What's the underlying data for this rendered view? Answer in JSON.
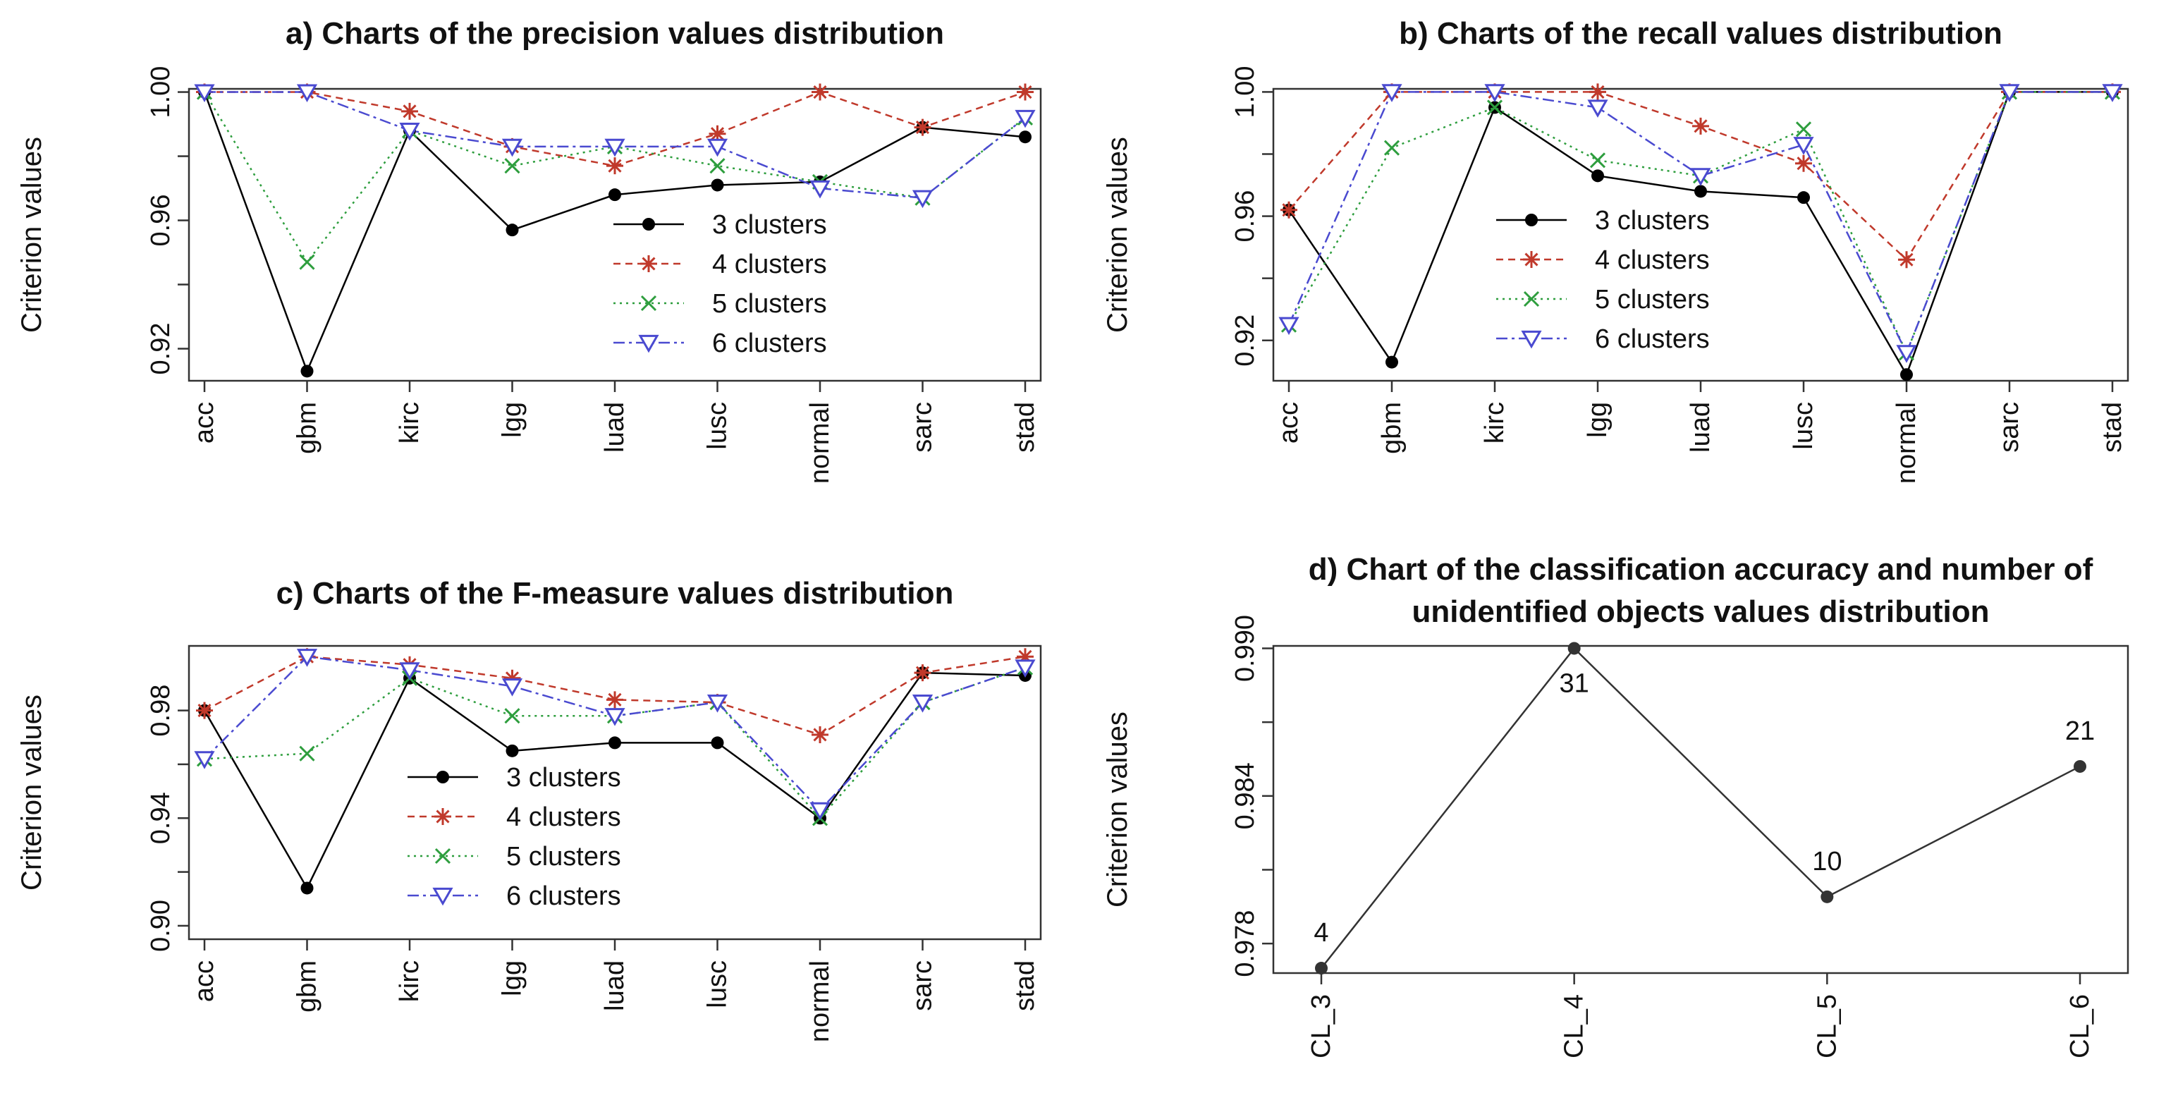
{
  "styles": {
    "3 clusters": {
      "color": "#000000",
      "marker": "dot"
    },
    "4 clusters": {
      "color": "#c0392b",
      "marker": "star"
    },
    "5 clusters": {
      "color": "#2e9e3e",
      "marker": "cross"
    },
    "6 clusters": {
      "color": "#4a4ad0",
      "marker": "triangle-down"
    }
  },
  "chart_data": [
    {
      "id": "a",
      "type": "line",
      "title": "a) Charts of the precision values distribution",
      "ylabel": "Criterion values",
      "xlabel": "",
      "categories": [
        "acc",
        "gbm",
        "kirc",
        "lgg",
        "luad",
        "lusc",
        "normal",
        "sarc",
        "stad"
      ],
      "ylim": [
        0.91,
        1.001
      ],
      "yticks": [
        0.92,
        0.96,
        1.0
      ],
      "ytick_labels": [
        "0.92",
        "0.96",
        "1.00"
      ],
      "legend_position": "center-right",
      "legend_labels": [
        "3 clusters",
        "4 clusters",
        "5 clusters",
        "6 clusters"
      ],
      "series": [
        {
          "name": "3 clusters",
          "values": [
            1.0,
            0.913,
            0.988,
            0.957,
            0.968,
            0.971,
            0.972,
            0.989,
            0.986
          ]
        },
        {
          "name": "4 clusters",
          "values": [
            1.0,
            1.0,
            0.994,
            0.983,
            0.977,
            0.987,
            1.0,
            0.989,
            1.0
          ]
        },
        {
          "name": "5 clusters",
          "values": [
            1.0,
            0.947,
            0.988,
            0.977,
            0.983,
            0.977,
            0.972,
            0.967,
            0.992
          ]
        },
        {
          "name": "6 clusters",
          "values": [
            1.0,
            1.0,
            0.988,
            0.983,
            0.983,
            0.983,
            0.97,
            0.967,
            0.992
          ]
        }
      ]
    },
    {
      "id": "b",
      "type": "line",
      "title": "b) Charts of the recall values distribution",
      "ylabel": "Criterion values",
      "xlabel": "",
      "categories": [
        "acc",
        "gbm",
        "kirc",
        "lgg",
        "luad",
        "lusc",
        "normal",
        "sarc",
        "stad"
      ],
      "ylim": [
        0.907,
        1.001
      ],
      "yticks": [
        0.92,
        0.96,
        1.0
      ],
      "ytick_labels": [
        "0.92",
        "0.96",
        "1.00"
      ],
      "legend_position": "center",
      "legend_labels": [
        "3 clusters",
        "4 clusters",
        "5 clusters",
        "6 clusters"
      ],
      "series": [
        {
          "name": "3 clusters",
          "values": [
            0.962,
            0.913,
            0.995,
            0.973,
            0.968,
            0.966,
            0.909,
            1.0,
            1.0
          ]
        },
        {
          "name": "4 clusters",
          "values": [
            0.962,
            1.0,
            1.0,
            1.0,
            0.989,
            0.977,
            0.946,
            1.0,
            1.0
          ]
        },
        {
          "name": "5 clusters",
          "values": [
            0.925,
            0.982,
            0.995,
            0.978,
            0.973,
            0.988,
            0.916,
            1.0,
            1.0
          ]
        },
        {
          "name": "6 clusters",
          "values": [
            0.925,
            1.0,
            1.0,
            0.995,
            0.973,
            0.983,
            0.916,
            1.0,
            1.0
          ]
        }
      ]
    },
    {
      "id": "c",
      "type": "line",
      "title": "c) Charts of the F-measure values distribution",
      "ylabel": "Criterion values",
      "xlabel": "",
      "categories": [
        "acc",
        "gbm",
        "kirc",
        "lgg",
        "luad",
        "lusc",
        "normal",
        "sarc",
        "stad"
      ],
      "ylim": [
        0.895,
        1.004
      ],
      "yticks": [
        0.9,
        0.94,
        0.98
      ],
      "ytick_labels": [
        "0.90",
        "0.94",
        "0.98"
      ],
      "legend_position": "center-left",
      "legend_labels": [
        "3 clusters",
        "4 clusters",
        "5 clusters",
        "6 clusters"
      ],
      "series": [
        {
          "name": "3 clusters",
          "values": [
            0.98,
            0.914,
            0.992,
            0.965,
            0.968,
            0.968,
            0.94,
            0.994,
            0.993
          ]
        },
        {
          "name": "4 clusters",
          "values": [
            0.98,
            1.0,
            0.997,
            0.992,
            0.984,
            0.983,
            0.971,
            0.994,
            1.0
          ]
        },
        {
          "name": "5 clusters",
          "values": [
            0.962,
            0.964,
            0.992,
            0.978,
            0.978,
            0.983,
            0.94,
            0.983,
            0.996
          ]
        },
        {
          "name": "6 clusters",
          "values": [
            0.962,
            1.0,
            0.995,
            0.989,
            0.978,
            0.983,
            0.943,
            0.983,
            0.996
          ]
        }
      ]
    },
    {
      "id": "d",
      "type": "line",
      "title": "d) Chart of the classification accuracy and number of unidentified objects values distribution",
      "title_lines": [
        "d) Chart of the classification accuracy and number of",
        "unidentified objects values distribution"
      ],
      "ylabel": "Criterion values",
      "xlabel": "",
      "categories": [
        "CL_3",
        "CL_4",
        "CL_5",
        "CL_6"
      ],
      "ylim": [
        0.9768,
        0.9901
      ],
      "yticks": [
        0.978,
        0.984,
        0.99
      ],
      "ytick_labels": [
        "0.978",
        "0.984",
        "0.990"
      ],
      "series": [
        {
          "name": "accuracy",
          "values": [
            0.977,
            0.99,
            0.9799,
            0.9852
          ],
          "annotations": [
            "4",
            "31",
            "10",
            "21"
          ],
          "annotation_offsets": [
            "above",
            "below",
            "above",
            "above"
          ]
        }
      ]
    }
  ]
}
